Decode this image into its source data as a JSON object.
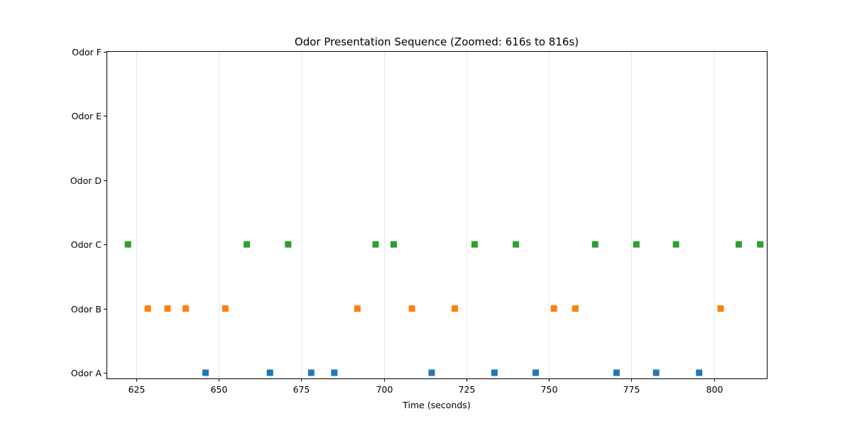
{
  "chart_data": {
    "type": "scatter",
    "title": "Odor Presentation Sequence (Zoomed: 616s to 816s)",
    "xlabel": "Time (seconds)",
    "ylabel": "",
    "xlim": [
      616,
      816
    ],
    "x_ticks": [
      625,
      650,
      675,
      700,
      725,
      750,
      775,
      800
    ],
    "categories": [
      "Odor A",
      "Odor B",
      "Odor C",
      "Odor D",
      "Odor E",
      "Odor F"
    ],
    "grid": "x-axis",
    "legend": "none",
    "marker": "square",
    "series": [
      {
        "category": "Odor A",
        "color": "#1f77b4",
        "x": [
          646.0,
          665.5,
          678.0,
          685.0,
          714.5,
          733.5,
          746.0,
          770.5,
          782.5,
          795.5
        ]
      },
      {
        "category": "Odor B",
        "color": "#ff7f0e",
        "x": [
          628.5,
          634.5,
          640.0,
          652.0,
          692.0,
          708.5,
          721.5,
          751.5,
          758.0,
          802.0
        ]
      },
      {
        "category": "Odor C",
        "color": "#2ca02c",
        "x": [
          622.5,
          658.5,
          671.0,
          697.5,
          703.0,
          727.5,
          740.0,
          764.0,
          776.5,
          788.5,
          807.5,
          814.0
        ]
      },
      {
        "category": "Odor D",
        "color": "#d62728",
        "x": []
      },
      {
        "category": "Odor E",
        "color": "#9467bd",
        "x": []
      },
      {
        "category": "Odor F",
        "color": "#8c564b",
        "x": []
      }
    ]
  }
}
